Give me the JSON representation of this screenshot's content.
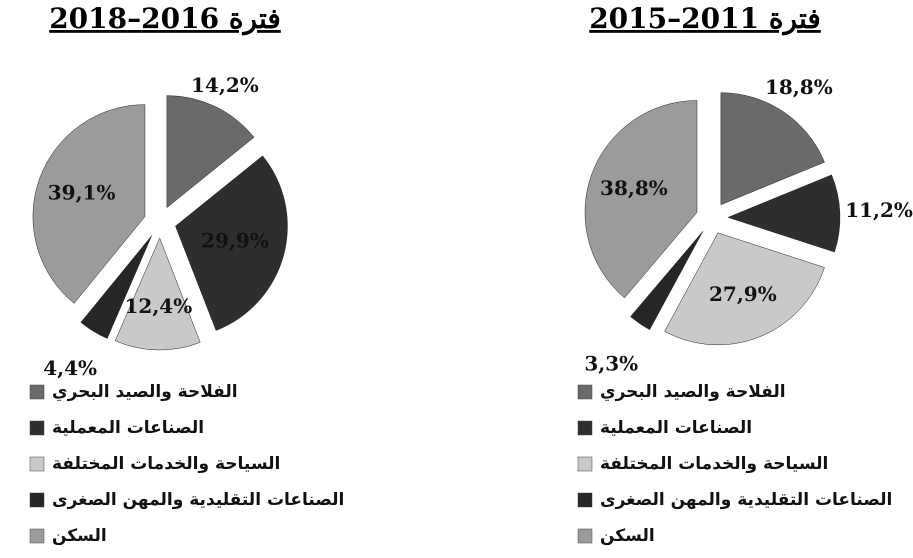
{
  "chart_data": [
    {
      "type": "pie",
      "title": "فترة 2016–2018",
      "categories": [
        "الفلاحة والصيد البحري",
        "الصناعات المعملية",
        "السياحة والخدمات المختلفة",
        "الصناعات التقليدية والمهن الصغرى",
        "السكن"
      ],
      "values": [
        14.2,
        29.9,
        12.4,
        4.4,
        39.1
      ],
      "value_labels": [
        "14,2%",
        "29,9%",
        "12,4%",
        "4,4%",
        "39,1%"
      ],
      "colors": [
        "#6a6a6a",
        "#2e2e2e",
        "#c9c9c9",
        "#262626",
        "#9b9b9b"
      ]
    },
    {
      "type": "pie",
      "title": "فترة 2011–2015",
      "categories": [
        "الفلاحة والصيد البحري",
        "الصناعات المعملية",
        "السياحة والخدمات المختلفة",
        "الصناعات التقليدية والمهن الصغرى",
        "السكن"
      ],
      "values": [
        18.8,
        11.2,
        27.9,
        3.3,
        38.8
      ],
      "value_labels": [
        "18,8%",
        "11,2%",
        "27,9%",
        "3,3%",
        "38,8%"
      ],
      "colors": [
        "#6a6a6a",
        "#2e2e2e",
        "#c9c9c9",
        "#262626",
        "#9b9b9b"
      ]
    }
  ]
}
